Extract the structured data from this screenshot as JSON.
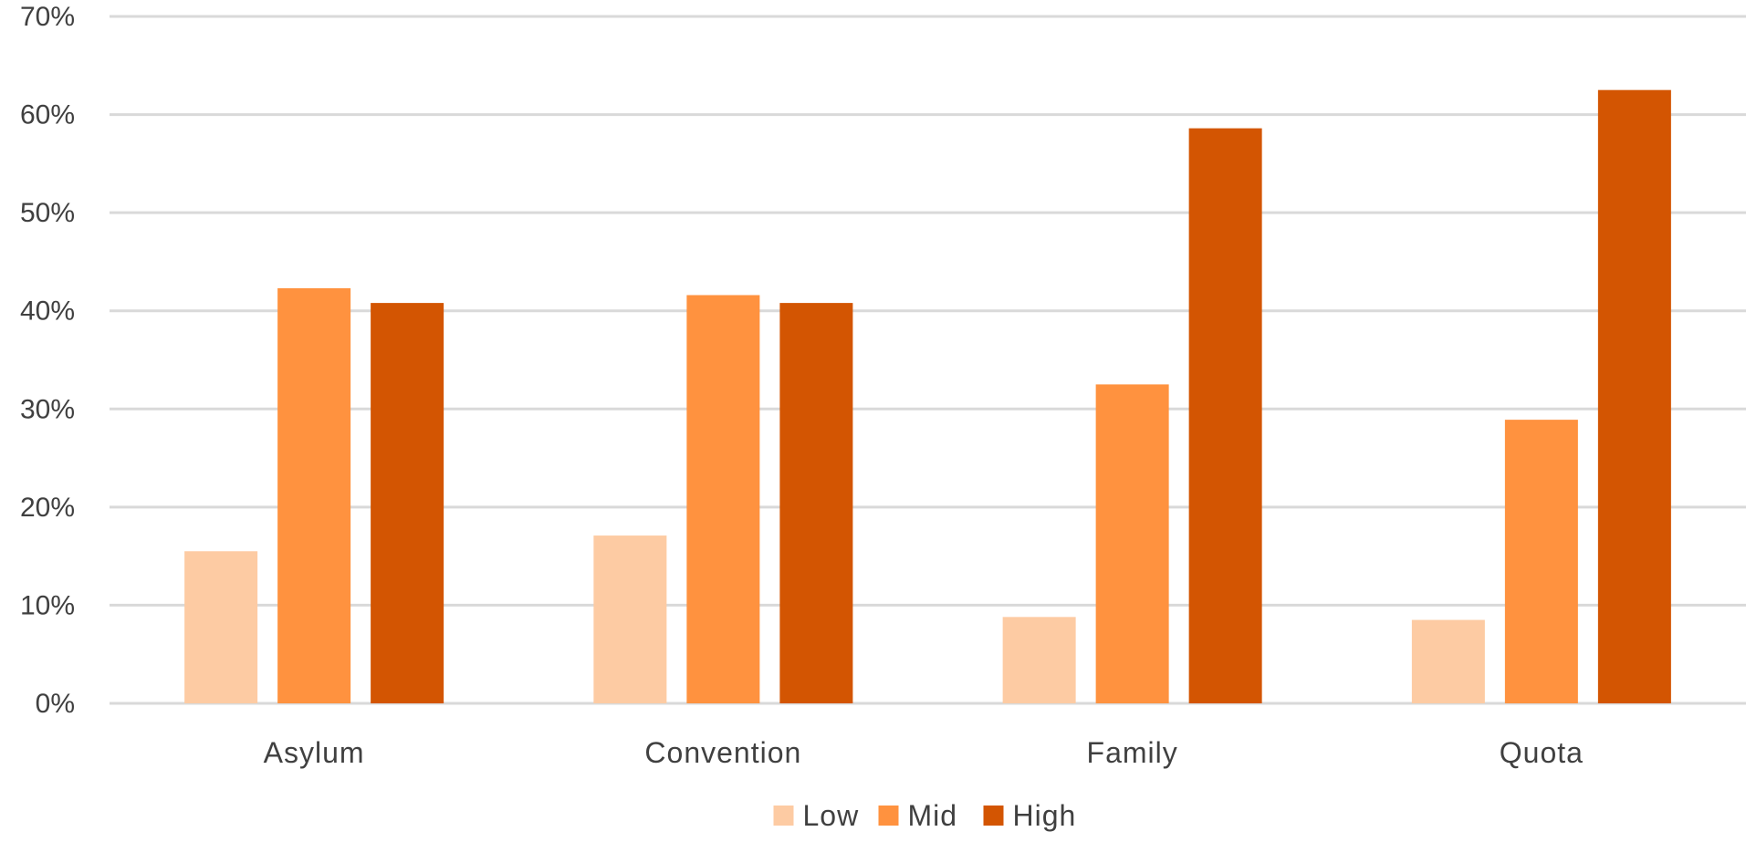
{
  "chart_data": {
    "type": "bar",
    "categories": [
      "Asylum",
      "Convention",
      "Family",
      "Quota"
    ],
    "series": [
      {
        "name": "Low",
        "color": "#FDCBA3",
        "values": [
          15.5,
          17.1,
          8.8,
          8.5
        ]
      },
      {
        "name": "Mid",
        "color": "#FF923F",
        "values": [
          42.3,
          41.6,
          32.5,
          28.9
        ]
      },
      {
        "name": "High",
        "color": "#D35502",
        "values": [
          40.8,
          40.8,
          58.6,
          62.5
        ]
      }
    ],
    "ylim": [
      0,
      70
    ],
    "ytick_values": [
      0,
      10,
      20,
      30,
      40,
      50,
      60,
      70
    ],
    "ytick_labels": [
      "0%",
      "10%",
      "20%",
      "30%",
      "40%",
      "50%",
      "60%",
      "70%"
    ],
    "grid": true,
    "legend_position": "bottom",
    "gridline_color": "#D9D9D9",
    "text_color": "#404040"
  }
}
